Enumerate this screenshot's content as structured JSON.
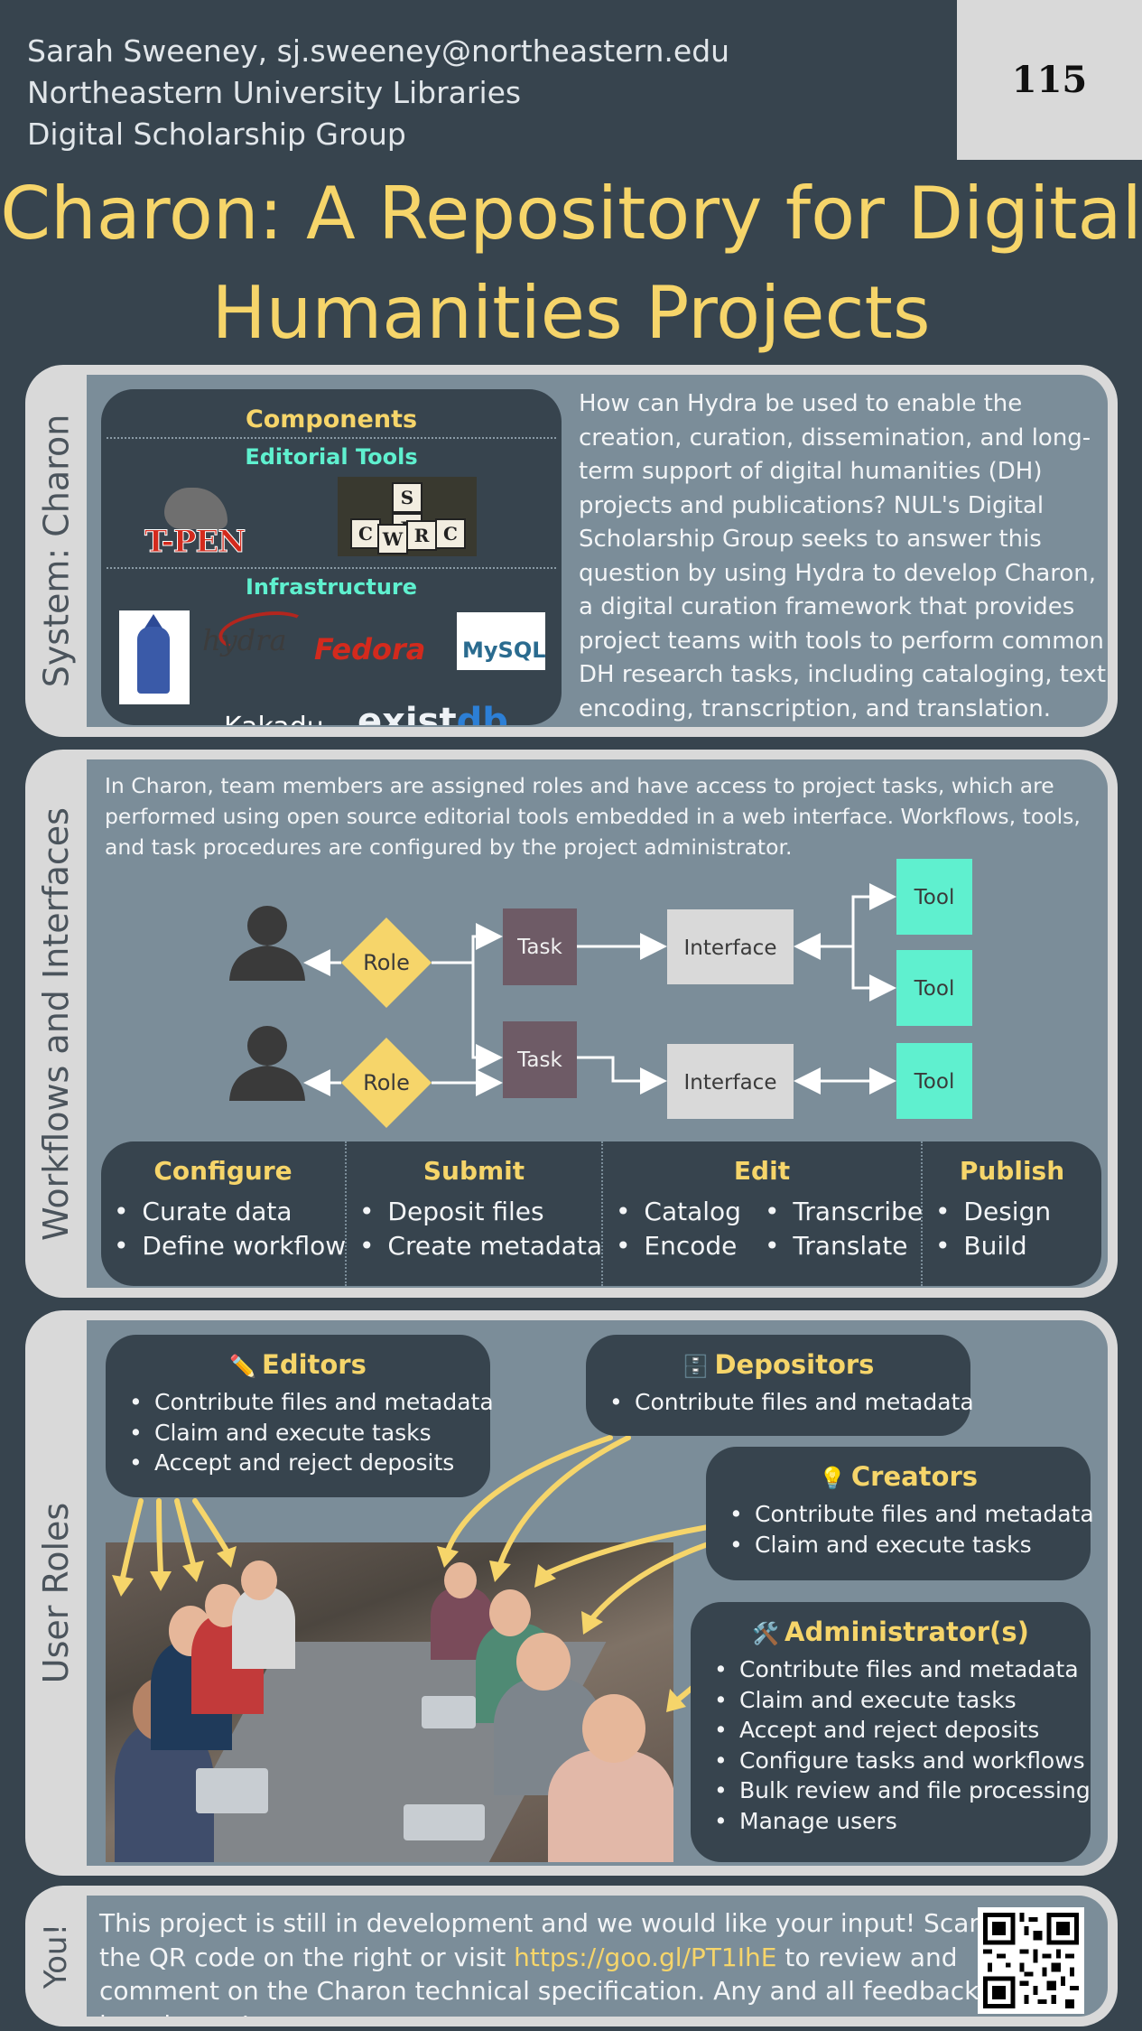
{
  "header": {
    "author_line1": "Sarah Sweeney, sj.sweeney@northeastern.edu",
    "author_line2": "Northeastern University Libraries",
    "author_line3": "Digital Scholarship Group",
    "poster_number": "115",
    "title_line1": "Charon: A Repository for Digital",
    "title_line2": "Humanities Projects"
  },
  "system": {
    "label": "System: Charon",
    "components_title": "Components",
    "editorial_title": "Editorial Tools",
    "infrastructure_title": "Infrastructure",
    "logos": {
      "tpen": "T-PEN",
      "cwrc_letters": [
        "S",
        "E",
        "C",
        "W",
        "R",
        "C"
      ],
      "hydra": "hydra",
      "fedora": "Fedora",
      "mysql": "MySQL",
      "kakadu": "Kakadu",
      "existdb_prefix": "exist",
      "existdb_suffix": "db"
    },
    "intro": "How can Hydra be used to enable the creation, curation, dissemination, and long-term support of digital humanities (DH) projects and publications? NUL's Digital Scholarship Group seeks to answer this question by using Hydra to develop Charon, a digital curation framework that provides project teams with tools to perform common DH research tasks, including cataloging, text encoding, transcription, and translation."
  },
  "workflows": {
    "label": "Workflows and Interfaces",
    "intro": "In Charon, team members are assigned roles and have access to project tasks, which are performed using open source editorial tools embedded in a web interface. Workflows, tools, and task procedures are configured by the project administrator.",
    "diagram": {
      "role": "Role",
      "task": "Task",
      "interface": "Interface",
      "tool": "Tool"
    },
    "stages": {
      "configure": {
        "title": "Configure",
        "items": [
          "Curate data",
          "Define workflow"
        ]
      },
      "submit": {
        "title": "Submit",
        "items": [
          "Deposit files",
          "Create metadata"
        ]
      },
      "edit": {
        "title": "Edit",
        "col1": [
          "Catalog",
          "Encode"
        ],
        "col2": [
          "Transcribe",
          "Translate"
        ]
      },
      "publish": {
        "title": "Publish",
        "items": [
          "Design",
          "Build"
        ]
      }
    }
  },
  "roles": {
    "label": "User Roles",
    "editors": {
      "icon": "✏️",
      "title": "Editors",
      "items": [
        "Contribute files and metadata",
        "Claim and execute tasks",
        "Accept and reject deposits"
      ]
    },
    "depositors": {
      "icon": "🗄️",
      "title": "Depositors",
      "items": [
        "Contribute files and metadata"
      ]
    },
    "creators": {
      "icon": "💡",
      "title": "Creators",
      "items": [
        "Contribute files and metadata",
        "Claim and execute tasks"
      ]
    },
    "administrators": {
      "icon": "🛠️",
      "title": "Administrator(s)",
      "items": [
        "Contribute files and metadata",
        "Claim and execute tasks",
        "Accept and reject deposits",
        "Configure tasks and workflows",
        "Bulk review and file processing",
        "Manage users"
      ]
    }
  },
  "you": {
    "label": "You!",
    "text_before": "This project is still in development and we would like your input!  Scan the QR code on the right or visit ",
    "link": "https://goo.gl/PT1IhE",
    "text_after": " to review and comment on the Charon technical specification. Any and all feedback is welcome!"
  },
  "colors": {
    "background": "#37444e",
    "accent_yellow": "#f6d56a",
    "accent_teal": "#5ff0cf",
    "panel_blue": "#7b8d99",
    "task_purple": "#6e5b66"
  }
}
